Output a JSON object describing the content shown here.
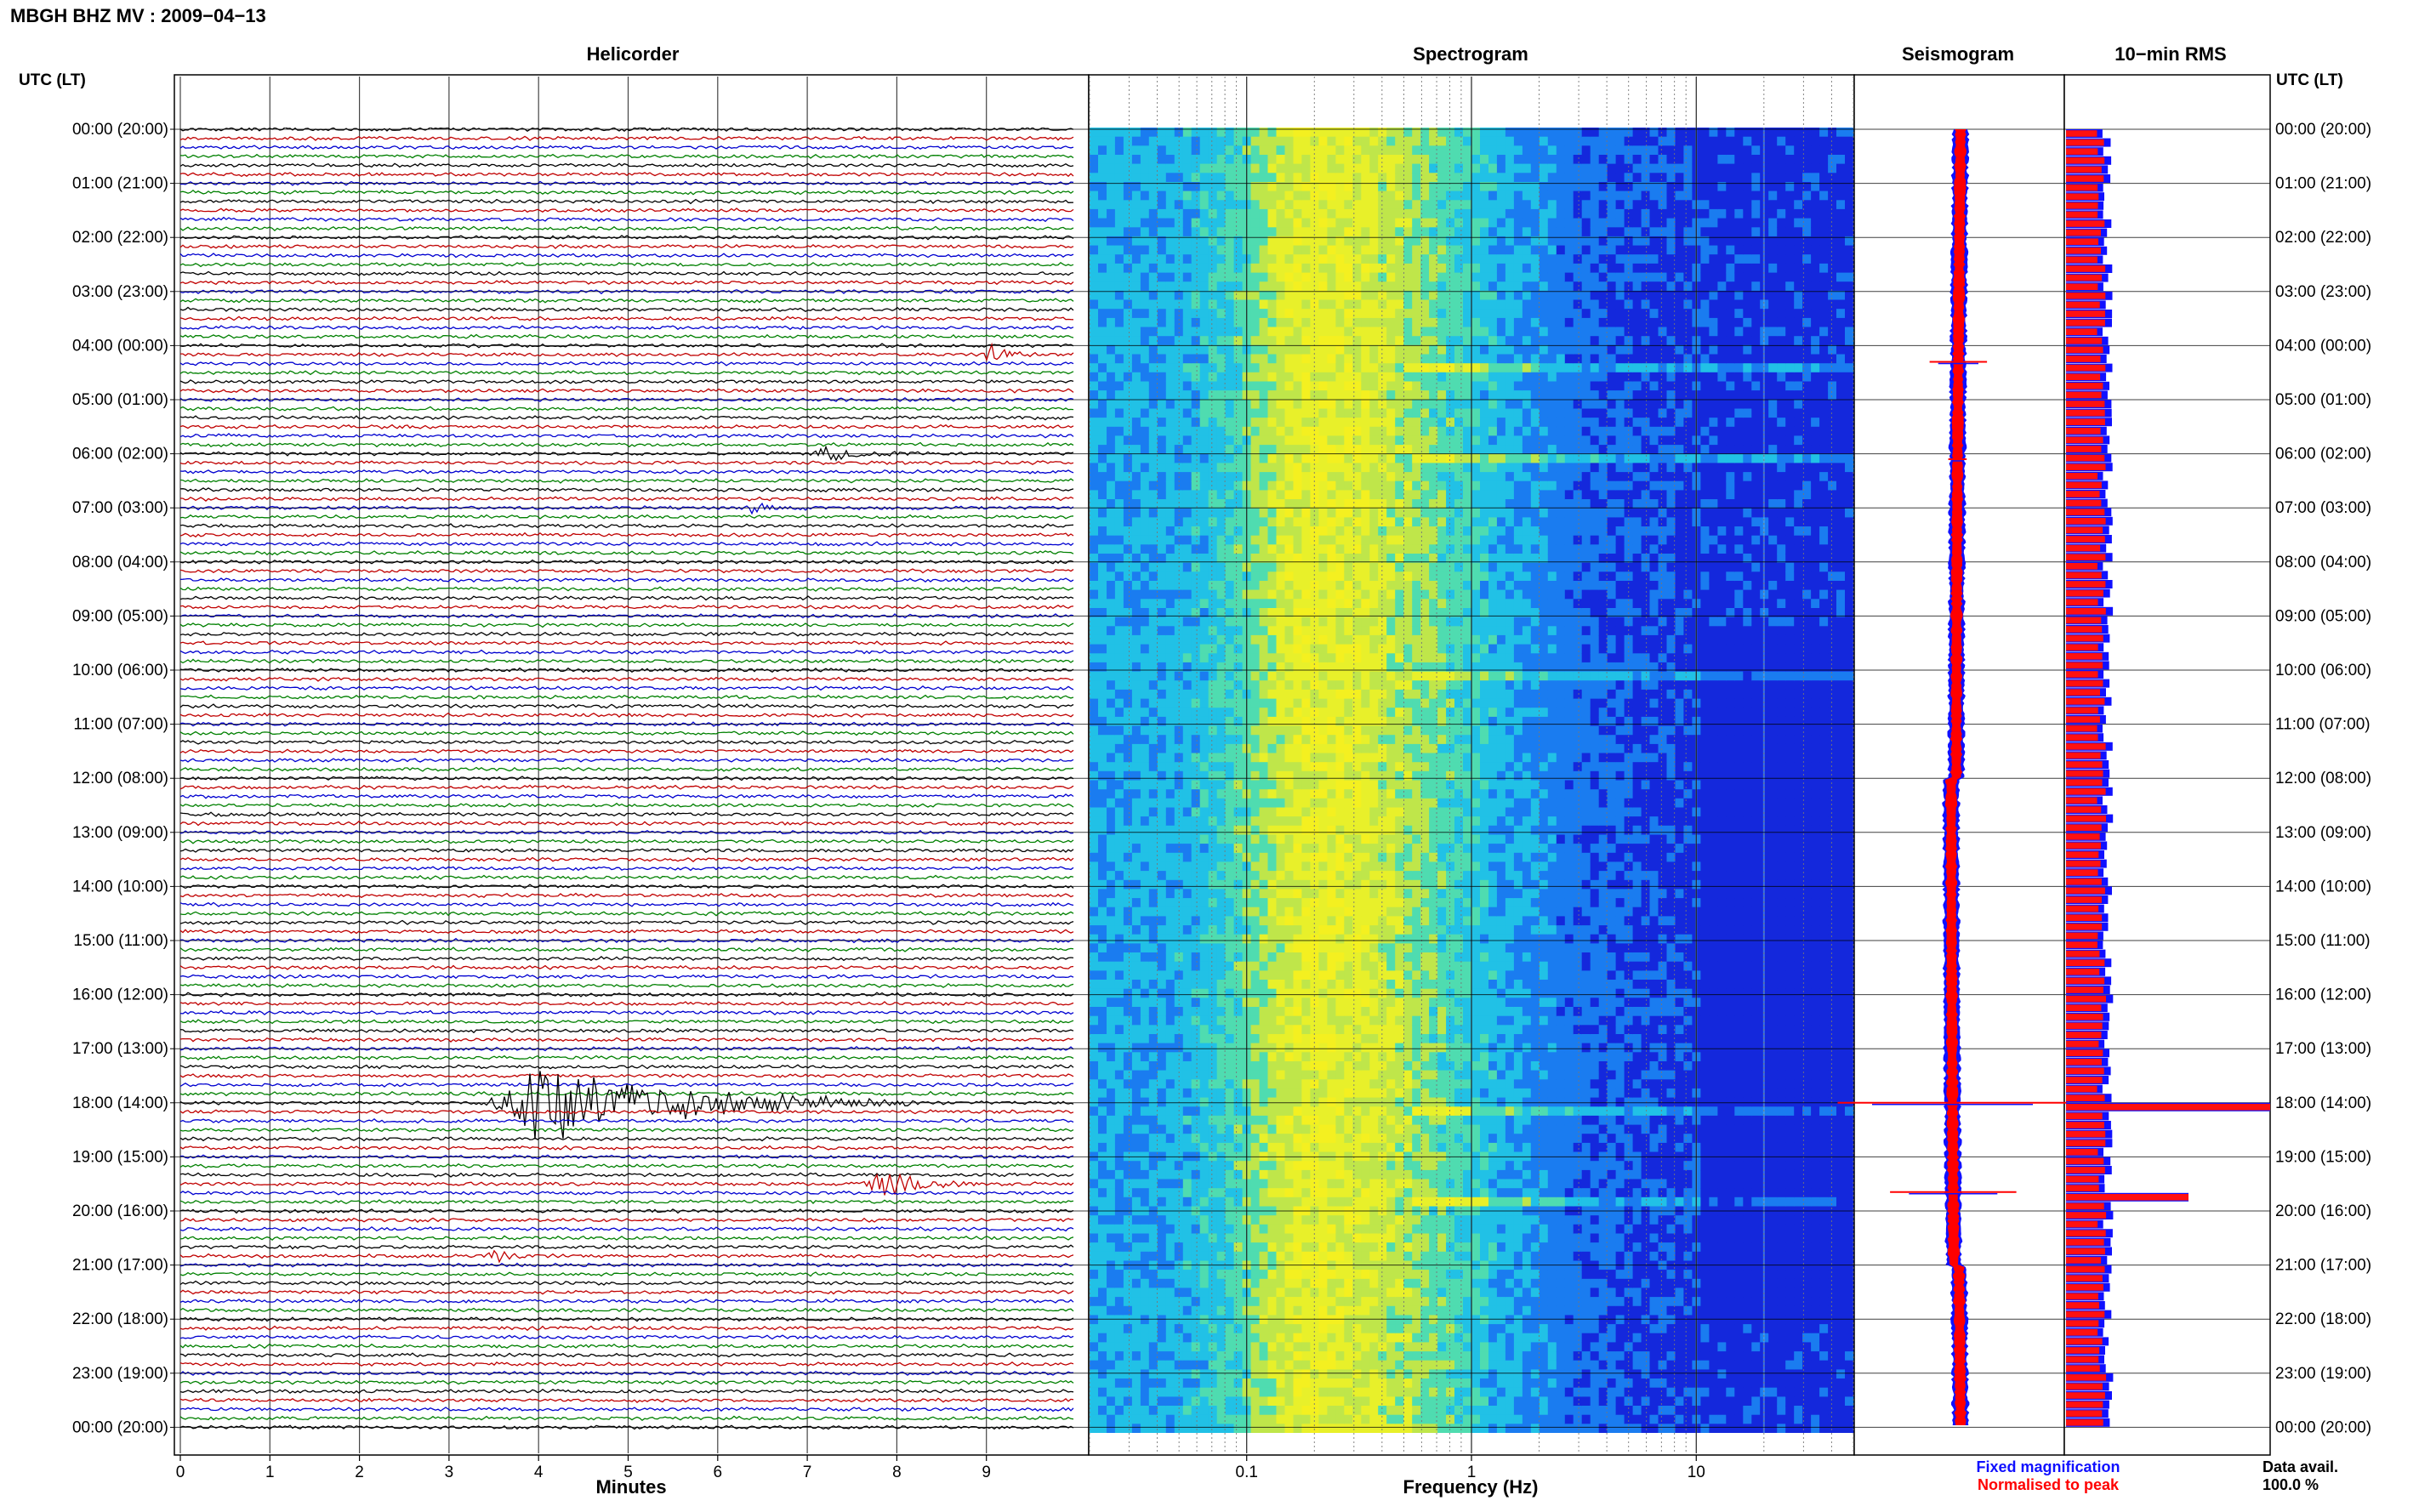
{
  "header": {
    "title": "MBGH BHZ MV : 2009−04−13"
  },
  "panels": {
    "helicorder": "Helicorder",
    "spectrogram": "Spectrogram",
    "seismogram": "Seismogram",
    "rms": "10−min RMS"
  },
  "axes": {
    "utc_label_left": "UTC (LT)",
    "utc_label_right": "UTC (LT)",
    "minutes_label": "Minutes",
    "frequency_label": "Frequency (Hz)"
  },
  "legend": {
    "fixed": "Fixed magnification",
    "normalised": "Normalised to peak",
    "fixed_color": "#1010ff",
    "normalised_color": "#ff0000"
  },
  "data_availability": {
    "label": "Data avail.",
    "value": "100.0 %"
  },
  "chart_data": [
    {
      "type": "line",
      "panel": "Helicorder",
      "xlabel": "Minutes",
      "x_ticks": [
        "0",
        "1",
        "2",
        "3",
        "4",
        "5",
        "6",
        "7",
        "8",
        "9"
      ],
      "xlim": [
        0,
        10
      ],
      "time_labels": [
        "00:00 (20:00)",
        "01:00 (21:00)",
        "02:00 (22:00)",
        "03:00 (23:00)",
        "04:00 (00:00)",
        "05:00 (01:00)",
        "06:00 (02:00)",
        "07:00 (03:00)",
        "08:00 (04:00)",
        "09:00 (05:00)",
        "10:00 (06:00)",
        "11:00 (07:00)",
        "12:00 (08:00)",
        "13:00 (09:00)",
        "14:00 (10:00)",
        "15:00 (11:00)",
        "16:00 (12:00)",
        "17:00 (13:00)",
        "18:00 (14:00)",
        "19:00 (15:00)",
        "20:00 (16:00)",
        "21:00 (17:00)",
        "22:00 (18:00)",
        "23:00 (19:00)",
        "00:00 (20:00)"
      ],
      "trace_colors": [
        "#000000",
        "#c00000",
        "#0000d0",
        "#008000"
      ],
      "rows_per_hour": 6,
      "events": [
        {
          "hour": 4.1,
          "start_min": 8.95,
          "end_min": 9.5,
          "amp": 0.35
        },
        {
          "hour": 6.0,
          "start_min": 7.0,
          "end_min": 8.3,
          "amp": 0.2
        },
        {
          "hour": 7.0,
          "start_min": 6.3,
          "end_min": 7.0,
          "amp": 0.2
        },
        {
          "hour": 18.0,
          "start_min": 3.4,
          "end_min": 8.2,
          "amp": 1.4
        },
        {
          "hour": 19.5,
          "start_min": 7.6,
          "end_min": 8.9,
          "amp": 0.5
        },
        {
          "hour": 20.8,
          "start_min": 3.4,
          "end_min": 4.1,
          "amp": 0.25
        }
      ]
    },
    {
      "type": "heatmap",
      "panel": "Spectrogram",
      "xlabel": "Frequency (Hz)",
      "x_scale": "log",
      "xlim": [
        0.02,
        50
      ],
      "x_ticks": [
        "0.1",
        "1",
        "10"
      ],
      "peak_frequency_hz": 0.2,
      "high_frequency_lines_hz": [
        10,
        20
      ],
      "event_hours": [
        4.3,
        6.0,
        10.0,
        18.0,
        19.7
      ]
    },
    {
      "type": "line",
      "panel": "Seismogram",
      "series": [
        {
          "name": "Fixed magnification",
          "color": "#1010ff"
        },
        {
          "name": "Normalised to peak",
          "color": "#ff0000"
        }
      ],
      "spikes": [
        {
          "hour": 4.3,
          "amp": 0.25
        },
        {
          "hour": 6.1,
          "amp": 0.08
        },
        {
          "hour": 18.0,
          "amp": 1.0
        },
        {
          "hour": 19.65,
          "amp": 0.55
        }
      ]
    },
    {
      "type": "bar",
      "panel": "10-min RMS",
      "orientation": "horizontal",
      "bins_per_hour": 6,
      "baseline_level": 0.3,
      "peaks": [
        {
          "hour": 18.0,
          "level": 1.0
        },
        {
          "hour": 19.67,
          "level": 0.6
        }
      ]
    }
  ]
}
